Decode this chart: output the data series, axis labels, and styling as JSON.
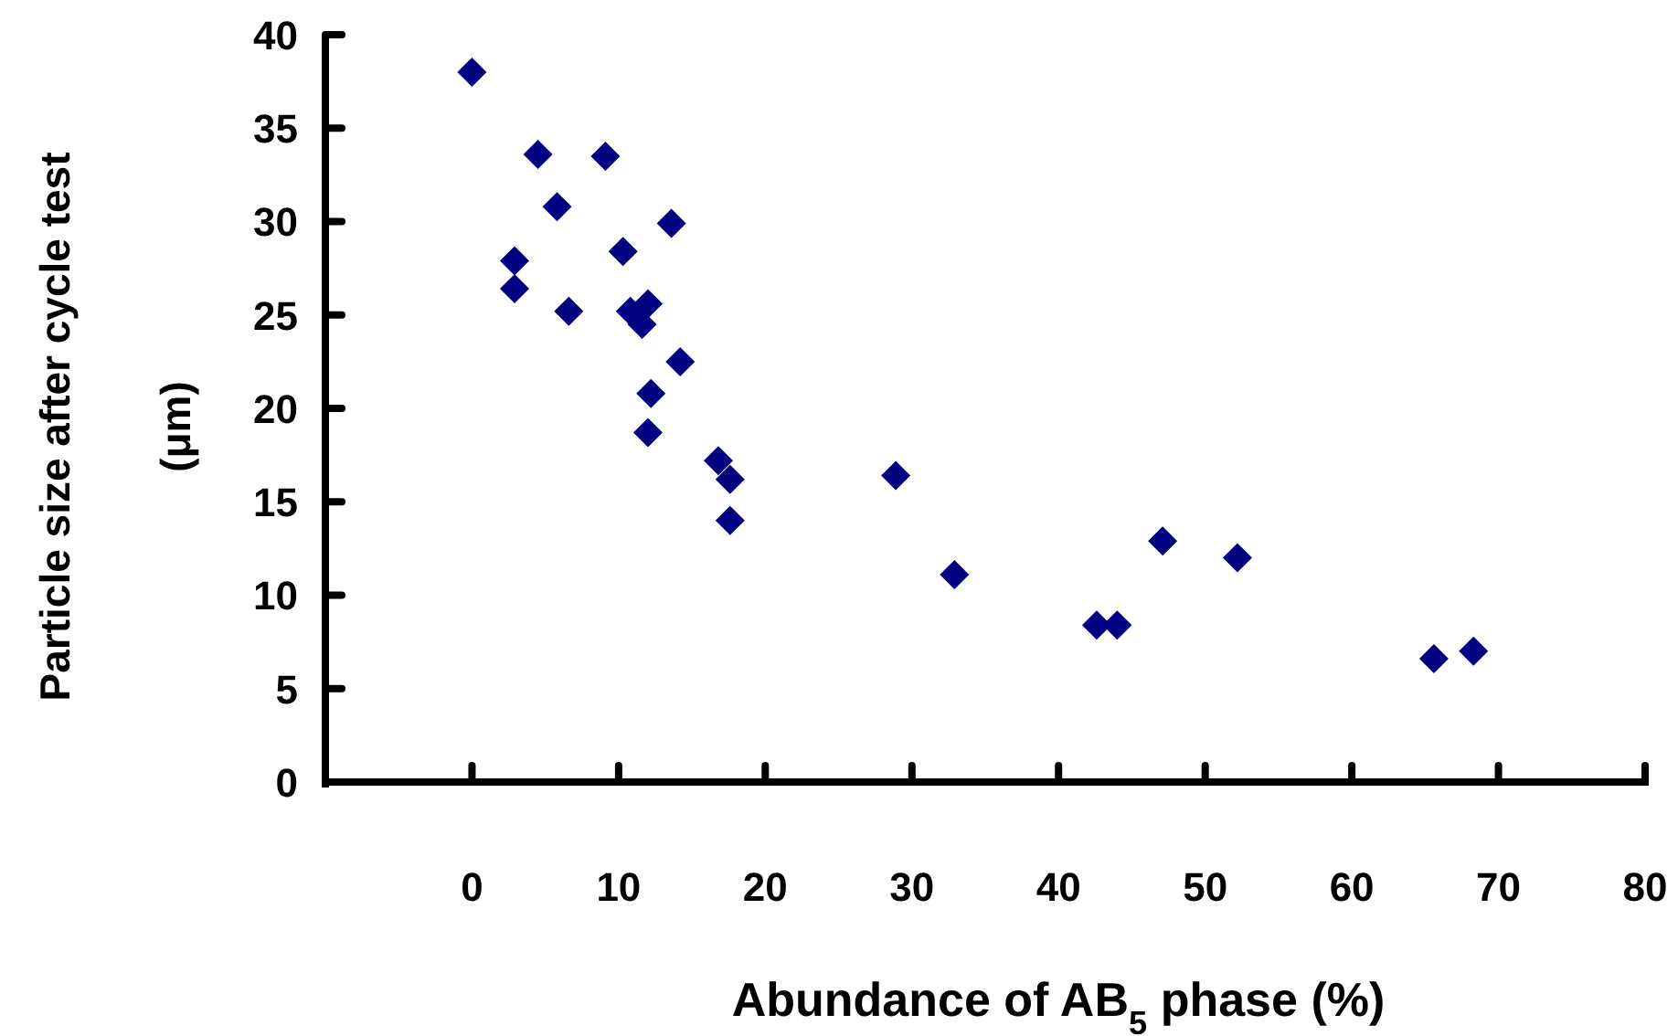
{
  "chart_data": {
    "type": "scatter",
    "xlabel": "Abundance of AB$_{5}$ phase (%)",
    "ylabel": "Particle size after cycle test (μm)",
    "x": [
      0,
      4.5,
      9.1,
      5.8,
      13.6,
      10.3,
      2.9,
      2.9,
      6.6,
      10.8,
      12,
      11.6,
      14.2,
      12.2,
      12,
      16.8,
      17.6,
      17.6,
      28.9,
      32.9,
      42.6,
      44,
      47.1,
      52.2,
      65.6,
      68.3
    ],
    "series": [
      {
        "color": "#000080",
        "values": [
          38,
          33.6,
          33.5,
          30.8,
          29.9,
          28.4,
          27.9,
          26.4,
          25.2,
          25.2,
          25.6,
          24.5,
          22.5,
          20.8,
          18.7,
          17.2,
          16.2,
          14,
          16.4,
          11.1,
          8.4,
          8.4,
          12.9,
          12,
          6.6,
          7
        ]
      }
    ],
    "xlim": [
      -10,
      80
    ],
    "xticks": [
      {
        "value": -10,
        "label": null
      },
      0,
      10,
      20,
      30,
      40,
      50,
      60,
      70,
      80
    ],
    "ylim": [
      0,
      40
    ],
    "yticks": [
      0,
      5,
      10,
      15,
      20,
      25,
      30,
      35,
      40
    ],
    "marker": "diamond",
    "grid": false
  }
}
